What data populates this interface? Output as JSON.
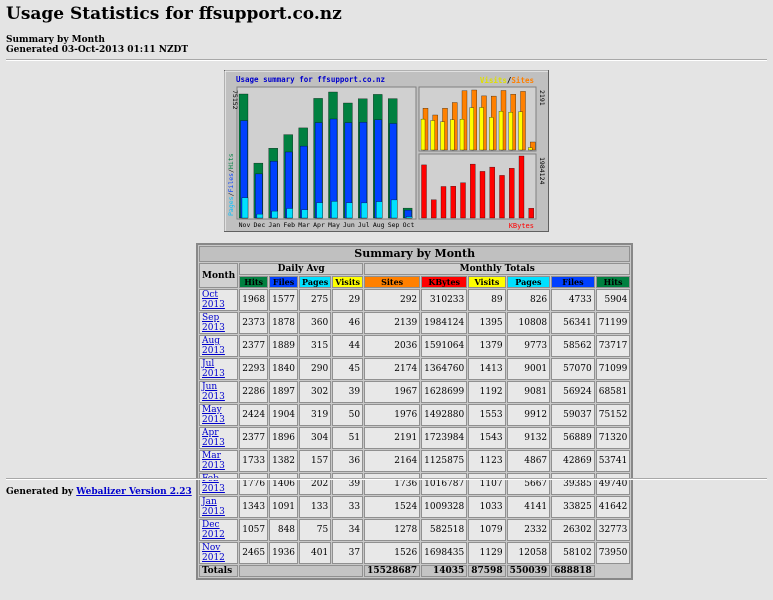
{
  "page": {
    "title": "Usage Statistics for ffsupport.co.nz",
    "subtitle_line1": "Summary by Month",
    "subtitle_line2": "Generated 03-Oct-2013 01:11 NZDT"
  },
  "chart_data": {
    "type": "bar",
    "title": "Usage summary for ffsupport.co.nz",
    "categories": [
      "Nov",
      "Dec",
      "Jan",
      "Feb",
      "Mar",
      "Apr",
      "May",
      "Jun",
      "Jul",
      "Aug",
      "Sep",
      "Oct"
    ],
    "left_panel": {
      "axis_label": "Pages / Files / Hits",
      "axis_label_parts": [
        "Pages",
        "/",
        "Files",
        "/",
        "Hits"
      ],
      "axis_max_label": "75152",
      "ylim": [
        0,
        75152
      ],
      "series": [
        {
          "name": "Hits",
          "color": "#008040",
          "values": [
            73950,
            32773,
            41642,
            49740,
            53741,
            71320,
            75152,
            68581,
            71099,
            73717,
            71199,
            5904
          ]
        },
        {
          "name": "Files",
          "color": "#0040ff",
          "values": [
            58102,
            26302,
            33825,
            39385,
            42869,
            56889,
            59037,
            56924,
            57070,
            58562,
            56341,
            4733
          ]
        },
        {
          "name": "Pages",
          "color": "#00e0ff",
          "values": [
            12058,
            2332,
            4141,
            5667,
            4867,
            9132,
            9912,
            9081,
            9001,
            9773,
            10808,
            826
          ]
        }
      ]
    },
    "right_top_panel": {
      "legend_parts": [
        "Visits",
        "/",
        "Sites"
      ],
      "axis_max_label": "2191",
      "ylim": [
        0,
        2191
      ],
      "series": [
        {
          "name": "Visits",
          "color": "#ffff00",
          "values": [
            1129,
            1079,
            1033,
            1107,
            1123,
            1543,
            1553,
            1192,
            1413,
            1379,
            1395,
            89
          ]
        },
        {
          "name": "Sites",
          "color": "#ff8000",
          "values": [
            1526,
            1278,
            1524,
            1736,
            2164,
            2191,
            1976,
            1967,
            2174,
            2036,
            2139,
            292
          ]
        }
      ]
    },
    "right_bottom_panel": {
      "legend": "KBytes",
      "axis_max_label": "1984124",
      "ylim": [
        0,
        1984124
      ],
      "series": [
        {
          "name": "KBytes",
          "color": "#ff0000",
          "values": [
            1698435,
            582518,
            1009328,
            1016787,
            1125875,
            1723984,
            1492880,
            1628699,
            1364760,
            1591064,
            1984124,
            310233
          ]
        }
      ]
    },
    "colors": {
      "frame": "#c0c0c0",
      "panel": "#d0d0d0",
      "axis_line": "#808080"
    }
  },
  "table": {
    "caption": "Summary by Month",
    "month_header": "Month",
    "daily_avg_header": "Daily Avg",
    "monthly_totals_header": "Monthly Totals",
    "col_headers": [
      {
        "label": "Hits",
        "bg": "#008040",
        "fg": "#000000"
      },
      {
        "label": "Files",
        "bg": "#0040ff",
        "fg": "#000000"
      },
      {
        "label": "Pages",
        "bg": "#00e0ff",
        "fg": "#000000"
      },
      {
        "label": "Visits",
        "bg": "#ffff00",
        "fg": "#000000"
      },
      {
        "label": "Sites",
        "bg": "#ff8000",
        "fg": "#000000"
      },
      {
        "label": "KBytes",
        "bg": "#ff0000",
        "fg": "#000000"
      },
      {
        "label": "Visits",
        "bg": "#ffff00",
        "fg": "#000000"
      },
      {
        "label": "Pages",
        "bg": "#00e0ff",
        "fg": "#000000"
      },
      {
        "label": "Files",
        "bg": "#0040ff",
        "fg": "#000000"
      },
      {
        "label": "Hits",
        "bg": "#008040",
        "fg": "#000000"
      }
    ],
    "rows": [
      {
        "month": "Oct 2013",
        "cells": [
          "1968",
          "1577",
          "275",
          "29",
          "292",
          "310233",
          "89",
          "826",
          "4733",
          "5904"
        ]
      },
      {
        "month": "Sep 2013",
        "cells": [
          "2373",
          "1878",
          "360",
          "46",
          "2139",
          "1984124",
          "1395",
          "10808",
          "56341",
          "71199"
        ]
      },
      {
        "month": "Aug 2013",
        "cells": [
          "2377",
          "1889",
          "315",
          "44",
          "2036",
          "1591064",
          "1379",
          "9773",
          "58562",
          "73717"
        ]
      },
      {
        "month": "Jul 2013",
        "cells": [
          "2293",
          "1840",
          "290",
          "45",
          "2174",
          "1364760",
          "1413",
          "9001",
          "57070",
          "71099"
        ]
      },
      {
        "month": "Jun 2013",
        "cells": [
          "2286",
          "1897",
          "302",
          "39",
          "1967",
          "1628699",
          "1192",
          "9081",
          "56924",
          "68581"
        ]
      },
      {
        "month": "May 2013",
        "cells": [
          "2424",
          "1904",
          "319",
          "50",
          "1976",
          "1492880",
          "1553",
          "9912",
          "59037",
          "75152"
        ]
      },
      {
        "month": "Apr 2013",
        "cells": [
          "2377",
          "1896",
          "304",
          "51",
          "2191",
          "1723984",
          "1543",
          "9132",
          "56889",
          "71320"
        ]
      },
      {
        "month": "Mar 2013",
        "cells": [
          "1733",
          "1382",
          "157",
          "36",
          "2164",
          "1125875",
          "1123",
          "4867",
          "42869",
          "53741"
        ]
      },
      {
        "month": "Feb 2013",
        "cells": [
          "1776",
          "1406",
          "202",
          "39",
          "1736",
          "1016787",
          "1107",
          "5667",
          "39385",
          "49740"
        ]
      },
      {
        "month": "Jan 2013",
        "cells": [
          "1343",
          "1091",
          "133",
          "33",
          "1524",
          "1009328",
          "1033",
          "4141",
          "33825",
          "41642"
        ]
      },
      {
        "month": "Dec 2012",
        "cells": [
          "1057",
          "848",
          "75",
          "34",
          "1278",
          "582518",
          "1079",
          "2332",
          "26302",
          "32773"
        ]
      },
      {
        "month": "Nov 2012",
        "cells": [
          "2465",
          "1936",
          "401",
          "37",
          "1526",
          "1698435",
          "1129",
          "12058",
          "58102",
          "73950"
        ]
      }
    ],
    "totals_label": "Totals",
    "totals": [
      "15528687",
      "14035",
      "87598",
      "550039",
      "688818"
    ]
  },
  "footer": {
    "prefix": "Generated by ",
    "link_text": "Webalizer Version 2.23"
  }
}
